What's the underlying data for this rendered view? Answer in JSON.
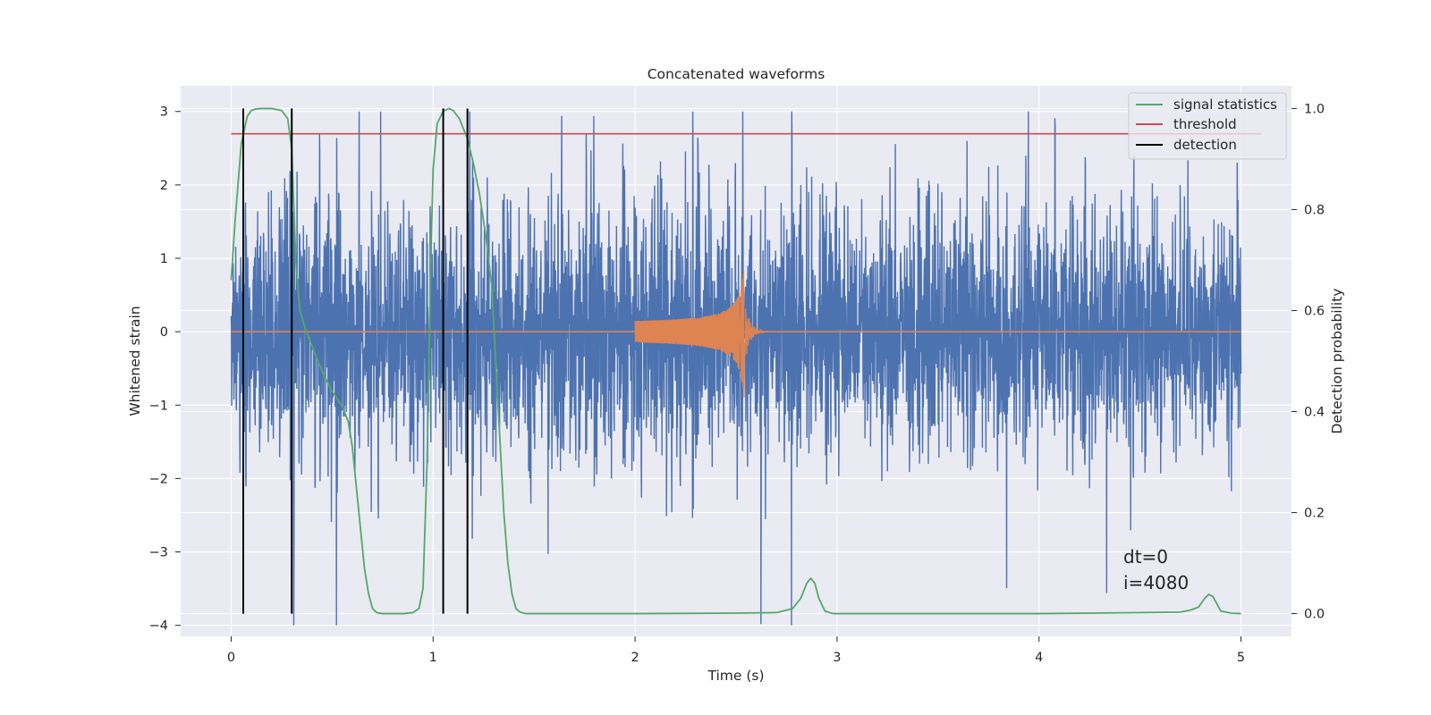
{
  "chart_data": {
    "type": "line",
    "title": "Concatenated waveforms",
    "xlabel": "Time (s)",
    "ylabel": "Whitened strain",
    "y2label": "Detection probability",
    "xlim": [
      -0.25,
      5.25
    ],
    "ylim": [
      -4.15,
      3.35
    ],
    "y2lim": [
      -0.045,
      1.045
    ],
    "xticks": [
      0,
      1,
      2,
      3,
      4,
      5
    ],
    "xtick_labels": [
      "0",
      "1",
      "2",
      "3",
      "4",
      "5"
    ],
    "yticks": [
      -4,
      -3,
      -2,
      -1,
      0,
      1,
      2,
      3
    ],
    "ytick_labels": [
      "−4",
      "−3",
      "−2",
      "−1",
      "0",
      "1",
      "2",
      "3"
    ],
    "y2ticks": [
      0.0,
      0.2,
      0.4,
      0.6,
      0.8,
      1.0
    ],
    "y2tick_labels": [
      "0.0",
      "0.2",
      "0.4",
      "0.6",
      "0.8",
      "1.0"
    ],
    "grid": true,
    "legend_position": "top-right",
    "colors": {
      "strain": "#4c72b0",
      "template": "#dd8452",
      "signal_statistics": "#55a868",
      "threshold": "#c44e52",
      "detection": "#000000",
      "axes_bg": "#eaeaf2",
      "grid": "#ffffff"
    },
    "series": [
      {
        "name": "signal statistics",
        "axis": "right",
        "x": [
          0,
          0.02,
          0.05,
          0.08,
          0.1,
          0.12,
          0.15,
          0.2,
          0.25,
          0.28,
          0.3,
          0.32,
          0.34,
          0.37,
          0.4,
          0.45,
          0.5,
          0.55,
          0.58,
          0.6,
          0.62,
          0.64,
          0.66,
          0.68,
          0.7,
          0.72,
          0.75,
          0.8,
          0.85,
          0.9,
          0.93,
          0.95,
          0.97,
          0.99,
          1.0,
          1.02,
          1.05,
          1.08,
          1.1,
          1.13,
          1.17,
          1.2,
          1.23,
          1.26,
          1.29,
          1.31,
          1.33,
          1.35,
          1.37,
          1.39,
          1.41,
          1.43,
          1.46,
          1.5,
          2.0,
          2.5,
          2.7,
          2.78,
          2.82,
          2.85,
          2.87,
          2.89,
          2.91,
          2.94,
          2.98,
          3.05,
          3.5,
          4.0,
          4.5,
          4.7,
          4.75,
          4.79,
          4.82,
          4.84,
          4.86,
          4.88,
          4.9,
          4.95,
          5.0
        ],
        "y": [
          0.66,
          0.78,
          0.93,
          0.985,
          0.996,
          0.999,
          1.0,
          1.0,
          0.996,
          0.98,
          0.92,
          0.7,
          0.6,
          0.56,
          0.53,
          0.48,
          0.44,
          0.41,
          0.38,
          0.33,
          0.25,
          0.17,
          0.09,
          0.04,
          0.01,
          0.002,
          0.0,
          0.0,
          0.0,
          0.002,
          0.01,
          0.05,
          0.3,
          0.72,
          0.88,
          0.97,
          0.995,
          1.0,
          0.996,
          0.98,
          0.94,
          0.89,
          0.83,
          0.75,
          0.65,
          0.5,
          0.35,
          0.2,
          0.1,
          0.04,
          0.01,
          0.003,
          0.0,
          0.0,
          0.0,
          0.001,
          0.002,
          0.01,
          0.03,
          0.06,
          0.07,
          0.06,
          0.03,
          0.005,
          0.0,
          0.0,
          0.0,
          0.0,
          0.002,
          0.003,
          0.007,
          0.013,
          0.03,
          0.038,
          0.034,
          0.02,
          0.005,
          0.001,
          0.0
        ]
      },
      {
        "name": "threshold",
        "axis": "right",
        "x": [
          0,
          5.1
        ],
        "y": [
          0.95,
          0.95
        ]
      },
      {
        "name": "detection",
        "axis": "right",
        "type": "vlines",
        "x": [
          0.06,
          0.3,
          1.05,
          1.17
        ],
        "ymin": 0.0,
        "ymax": 1.0
      }
    ],
    "unlabeled_series": [
      {
        "description": "whitened strain (noise)",
        "axis": "left",
        "x_range": [
          0,
          5
        ],
        "amplitude_range": [
          -4.0,
          3.0
        ],
        "envelope": [
          -1.7,
          1.6
        ]
      },
      {
        "description": "injected chirp waveform",
        "axis": "left",
        "x_range": [
          2.0,
          2.54
        ],
        "peak_time": 2.54,
        "amplitude_start": 0.1,
        "amplitude_peak": 1.05
      }
    ],
    "annotations": [
      "dt=0",
      "i=4080"
    ]
  }
}
